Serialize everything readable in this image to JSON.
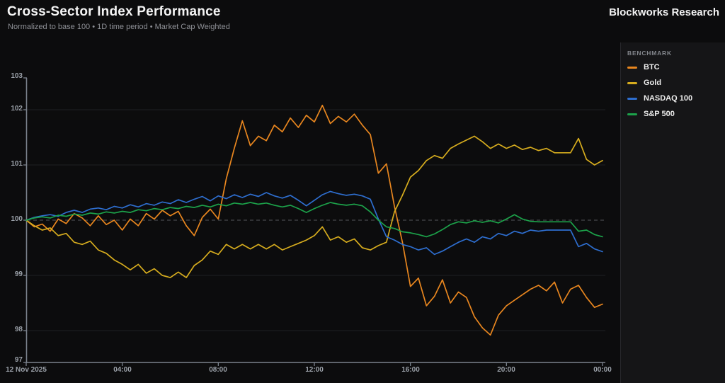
{
  "header": {
    "title": "Cross-Sector Index Performance",
    "subtitle": "Normalized to base 100 • 1D time period • Market Cap Weighted",
    "brand": "Blockworks Research"
  },
  "legend": {
    "title": "BENCHMARK",
    "items": [
      {
        "label": "BTC",
        "color": "#e8861f"
      },
      {
        "label": "Gold",
        "color": "#d6ac1e"
      },
      {
        "label": "NASDAQ 100",
        "color": "#2e6ecf"
      },
      {
        "label": "S&P 500",
        "color": "#1ca24a"
      }
    ]
  },
  "colors": {
    "background": "#0c0c0d",
    "panel": "#151517",
    "axis": "#7b828c",
    "grid": "#1e1f22",
    "baseline_dash": "#55565c"
  },
  "chart_data": {
    "type": "line",
    "title": "Cross-Sector Index Performance",
    "subtitle": "Normalized to base 100 • 1D time period • Market Cap Weighted",
    "baseline": 100,
    "legend_position": "right",
    "grid": "horizontal-only",
    "x_axis": {
      "date_label": "12 Nov 2025",
      "tick_labels": [
        "04:00",
        "08:00",
        "12:00",
        "16:00",
        "20:00",
        "00:00"
      ],
      "tick_hours": [
        0,
        4,
        8,
        12,
        16,
        20,
        24
      ],
      "hours_span": 24
    },
    "y_axis": {
      "tick_labels": [
        "103",
        "102",
        "101",
        "100",
        "99",
        "98",
        "97"
      ],
      "tick_values": [
        103,
        102,
        101,
        100,
        99,
        98,
        97
      ],
      "grid_values": [
        102,
        101,
        100,
        99,
        98
      ],
      "range_shown": [
        97.4,
        102.6
      ]
    },
    "x_step_hours": 0.33333,
    "series": [
      {
        "name": "BTC",
        "color": "#e8861f",
        "values": [
          100,
          99.88,
          99.93,
          99.8,
          100.02,
          99.94,
          100.12,
          100.04,
          99.9,
          100.08,
          99.92,
          100.0,
          99.82,
          100.02,
          99.9,
          100.12,
          100.02,
          100.18,
          100.08,
          100.16,
          99.9,
          99.72,
          100.05,
          100.2,
          100.02,
          100.75,
          101.3,
          101.8,
          101.35,
          101.52,
          101.44,
          101.72,
          101.6,
          101.85,
          101.68,
          101.9,
          101.78,
          102.08,
          101.75,
          101.88,
          101.78,
          101.92,
          101.72,
          101.55,
          100.85,
          101.02,
          100.25,
          99.6,
          98.8,
          98.95,
          98.45,
          98.62,
          98.92,
          98.5,
          98.7,
          98.6,
          98.25,
          98.05,
          97.92,
          98.28,
          98.45,
          98.55,
          98.65,
          98.75,
          98.82,
          98.72,
          98.88,
          98.5,
          98.75,
          98.82,
          98.6,
          98.42,
          98.48
        ]
      },
      {
        "name": "Gold",
        "color": "#d6ac1e",
        "values": [
          100,
          99.9,
          99.82,
          99.86,
          99.72,
          99.76,
          99.6,
          99.56,
          99.62,
          99.46,
          99.4,
          99.28,
          99.2,
          99.1,
          99.2,
          99.04,
          99.12,
          99.0,
          98.96,
          99.06,
          98.96,
          99.18,
          99.28,
          99.44,
          99.38,
          99.56,
          99.48,
          99.56,
          99.48,
          99.56,
          99.48,
          99.56,
          99.46,
          99.52,
          99.58,
          99.64,
          99.72,
          99.88,
          99.64,
          99.7,
          99.6,
          99.66,
          99.5,
          99.46,
          99.54,
          99.6,
          100.15,
          100.45,
          100.78,
          100.9,
          101.08,
          101.17,
          101.12,
          101.3,
          101.38,
          101.45,
          101.52,
          101.42,
          101.3,
          101.38,
          101.3,
          101.36,
          101.28,
          101.32,
          101.26,
          101.3,
          101.22,
          101.22,
          101.22,
          101.48,
          101.1,
          101.0,
          101.08
        ]
      },
      {
        "name": "NASDAQ 100",
        "color": "#2e6ecf",
        "values": [
          100,
          100.05,
          100.08,
          100.1,
          100.07,
          100.14,
          100.18,
          100.14,
          100.2,
          100.22,
          100.19,
          100.25,
          100.22,
          100.28,
          100.24,
          100.3,
          100.27,
          100.33,
          100.3,
          100.37,
          100.32,
          100.38,
          100.43,
          100.35,
          100.44,
          100.39,
          100.46,
          100.41,
          100.47,
          100.43,
          100.5,
          100.44,
          100.4,
          100.45,
          100.36,
          100.26,
          100.36,
          100.46,
          100.52,
          100.48,
          100.45,
          100.47,
          100.44,
          100.38,
          100.02,
          99.7,
          99.64,
          99.56,
          99.52,
          99.46,
          99.5,
          99.38,
          99.44,
          99.52,
          99.6,
          99.66,
          99.6,
          99.7,
          99.66,
          99.76,
          99.72,
          99.8,
          99.76,
          99.82,
          99.8,
          99.82,
          99.82,
          99.82,
          99.82,
          99.52,
          99.58,
          99.48,
          99.43
        ]
      },
      {
        "name": "S&P 500",
        "color": "#1ca24a",
        "values": [
          100,
          100.04,
          100.06,
          100.04,
          100.09,
          100.07,
          100.11,
          100.09,
          100.13,
          100.11,
          100.15,
          100.13,
          100.16,
          100.14,
          100.19,
          100.17,
          100.21,
          100.19,
          100.23,
          100.21,
          100.25,
          100.23,
          100.27,
          100.24,
          100.29,
          100.26,
          100.31,
          100.29,
          100.32,
          100.29,
          100.31,
          100.27,
          100.24,
          100.27,
          100.21,
          100.14,
          100.21,
          100.27,
          100.32,
          100.29,
          100.27,
          100.29,
          100.26,
          100.15,
          100.0,
          99.88,
          99.85,
          99.79,
          99.77,
          99.74,
          99.7,
          99.75,
          99.83,
          99.92,
          99.97,
          99.95,
          99.99,
          99.96,
          99.99,
          99.95,
          100.02,
          100.1,
          100.02,
          99.98,
          99.97,
          99.97,
          99.97,
          99.97,
          99.97,
          99.8,
          99.82,
          99.74,
          99.7
        ]
      }
    ]
  }
}
